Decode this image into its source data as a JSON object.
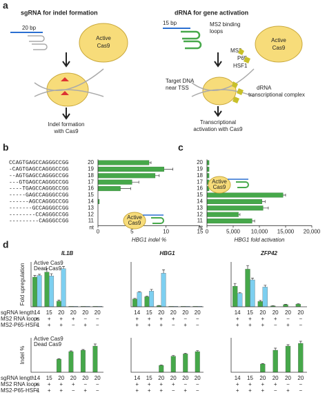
{
  "panel_labels": [
    "a",
    "b",
    "c",
    "d"
  ],
  "panel_a": {
    "left_title": "sgRNA for indel formation",
    "right_title": "dRNA for gene activation",
    "left_bp": "20 bp",
    "right_bp": "15 bp",
    "cas9_left": [
      "Active",
      "Cas9"
    ],
    "cas9_right": [
      "Active",
      "Cas9"
    ],
    "indel_text": [
      "Indel formation",
      "with Cas9"
    ],
    "ms2_loops": [
      "MS2 binding",
      "loops"
    ],
    "complex_parts": [
      "MS2",
      "P65",
      "HSF1"
    ],
    "target_dna": [
      "Target DNA",
      "near TSS"
    ],
    "drna_complex": [
      "dRNA",
      "transcriptional complex"
    ],
    "activation_text": [
      "Transcriptional",
      "activation with Cas9"
    ]
  },
  "conditions": {
    "labels": [
      "sgRNA length",
      "MS2 RNA loops",
      "MS2-P65-HSF1"
    ],
    "loops": [
      "+",
      "+",
      "+",
      "+",
      "−",
      "−"
    ],
    "activator": [
      "+",
      "+",
      "+",
      "−",
      "+",
      "−"
    ]
  },
  "chart_data": [
    {
      "type": "hbar",
      "panel": 1,
      "categories": [
        "20",
        "19",
        "18",
        "17",
        "16",
        "15",
        "14",
        "13",
        "12",
        "11"
      ],
      "category_note": "nt",
      "sequences": [
        "CCAGTGAGCCAGGGCCGG",
        "-CAGTGAGCCAGGGCCGG",
        "--AGTGAGCCAGGGCCGG",
        "---GTGAGCCAGGGCCGG",
        "----TGAGCCAGGGCCGG",
        "-----GAGCCAGGGCCGG",
        "------AGCCAGGGCCGG",
        "-------GCCAGGGCCGG",
        "--------CCAGGGCCGG",
        "---------CAGGGCCGG"
      ],
      "values": [
        7.5,
        9.7,
        8.4,
        5.0,
        3.3,
        0,
        0.2,
        0,
        0,
        0
      ],
      "errors": [
        0.3,
        1.3,
        0.6,
        1.0,
        1.5,
        0,
        0,
        0,
        0,
        0
      ],
      "color": "#46a84a",
      "xlim": [
        0,
        15
      ],
      "xticks": [
        0,
        5,
        10,
        15
      ],
      "xlabel": "HBG1 indel %",
      "inset_label": [
        "Active",
        "Cas9"
      ]
    },
    {
      "type": "hbar",
      "panel": 2,
      "categories": [
        "20",
        "19",
        "18",
        "17",
        "16",
        "15",
        "14",
        "13",
        "12",
        "11"
      ],
      "category_note": "nt",
      "values": [
        400,
        400,
        400,
        400,
        400,
        14500,
        10500,
        10700,
        6000,
        8600
      ],
      "errors": [
        0,
        0,
        0,
        0,
        0,
        500,
        600,
        1000,
        300,
        500
      ],
      "color": "#46a84a",
      "xlim": [
        0,
        20000
      ],
      "xticks": [
        0,
        {
          "value": 5000,
          "label": "5,000"
        },
        {
          "value": 10000,
          "label": "10,000"
        },
        {
          "value": 15000,
          "label": "15,000"
        },
        {
          "value": 20000,
          "label": "20,000"
        }
      ],
      "xlabel": "HBG1 fold activation",
      "inset_label": [
        "Active",
        "Cas9"
      ]
    },
    {
      "type": "grouped_bar",
      "title": "IL1B",
      "ylabel": "Fold upregulation",
      "categories": [
        "14",
        "15",
        "20",
        "20",
        "20",
        "20"
      ],
      "ylim": [
        0,
        8
      ],
      "series": [
        {
          "name": "Active Cas9",
          "color": "#46a84a",
          "values": [
            5.3,
            6.2,
            1.0,
            0.1,
            0.1,
            0.1
          ],
          "errors": [
            0.3,
            0.6,
            0.2,
            0,
            0,
            0
          ]
        },
        {
          "name": "Dead Cas9",
          "color": "#7dcff0",
          "values": [
            5.6,
            5.5,
            6.8,
            0.1,
            0.1,
            0.1
          ],
          "errors": [
            0.2,
            0.4,
            0.4,
            0,
            0,
            0
          ]
        }
      ]
    },
    {
      "type": "grouped_bar",
      "title": "HBG1",
      "categories": [
        "14",
        "15",
        "20",
        "20",
        "20",
        "20"
      ],
      "ylim": [
        0,
        4
      ],
      "series": [
        {
          "color": "#46a84a",
          "values": [
            0.7,
            0.9,
            0.1,
            0.05,
            0.05,
            0.05
          ],
          "errors": [
            0.05,
            0.05,
            0.02,
            0,
            0,
            0
          ]
        },
        {
          "color": "#7dcff0",
          "values": [
            1.3,
            1.4,
            3.0,
            0.05,
            0.05,
            0.05
          ],
          "errors": [
            0.05,
            0.15,
            0.3,
            0,
            0,
            0
          ]
        }
      ]
    },
    {
      "type": "grouped_bar",
      "title": "ZFP42",
      "categories": [
        "14",
        "15",
        "20",
        "20",
        "20",
        "20"
      ],
      "ylim": [
        0,
        25
      ],
      "series": [
        {
          "color": "#46a84a",
          "values": [
            11.5,
            21,
            3,
            0.5,
            1.2,
            1.5
          ],
          "errors": [
            1.5,
            2,
            0.5,
            0.1,
            0.2,
            0.2
          ]
        },
        {
          "color": "#7dcff0",
          "values": [
            7.5,
            15,
            11,
            0,
            0,
            0
          ],
          "errors": [
            0.4,
            1,
            1,
            0,
            0,
            0
          ]
        }
      ]
    },
    {
      "type": "grouped_bar",
      "ylabel": "Indel %",
      "categories": [
        "14",
        "15",
        "20",
        "20",
        "20",
        "20"
      ],
      "ylim": [
        0,
        25
      ],
      "series": [
        {
          "name": "Active Cas9",
          "color": "#46a84a",
          "values": [
            0,
            0,
            9.5,
            15,
            16,
            19
          ],
          "errors": [
            0,
            0,
            0.3,
            0.5,
            0.5,
            1.5
          ]
        },
        {
          "name": "Dead Cas9",
          "color": "#7dcff0",
          "values": [
            0,
            0,
            0,
            0,
            0,
            0
          ],
          "errors": [
            0,
            0,
            0,
            0,
            0,
            0
          ]
        }
      ]
    },
    {
      "type": "grouped_bar",
      "categories": [
        "14",
        "15",
        "20",
        "20",
        "20",
        "20"
      ],
      "ylim": [
        0,
        15
      ],
      "series": [
        {
          "color": "#46a84a",
          "values": [
            0,
            0,
            3,
            7,
            8,
            9
          ],
          "errors": [
            0,
            0,
            0.2,
            0.3,
            0.3,
            0.4
          ]
        }
      ]
    },
    {
      "type": "grouped_bar",
      "categories": [
        "14",
        "15",
        "20",
        "20",
        "20",
        "20"
      ],
      "ylim": [
        0,
        25
      ],
      "series": [
        {
          "color": "#46a84a",
          "values": [
            0,
            0,
            6,
            16,
            19,
            21
          ],
          "errors": [
            0,
            0,
            0.3,
            1.5,
            1,
            1.5
          ]
        }
      ]
    }
  ]
}
